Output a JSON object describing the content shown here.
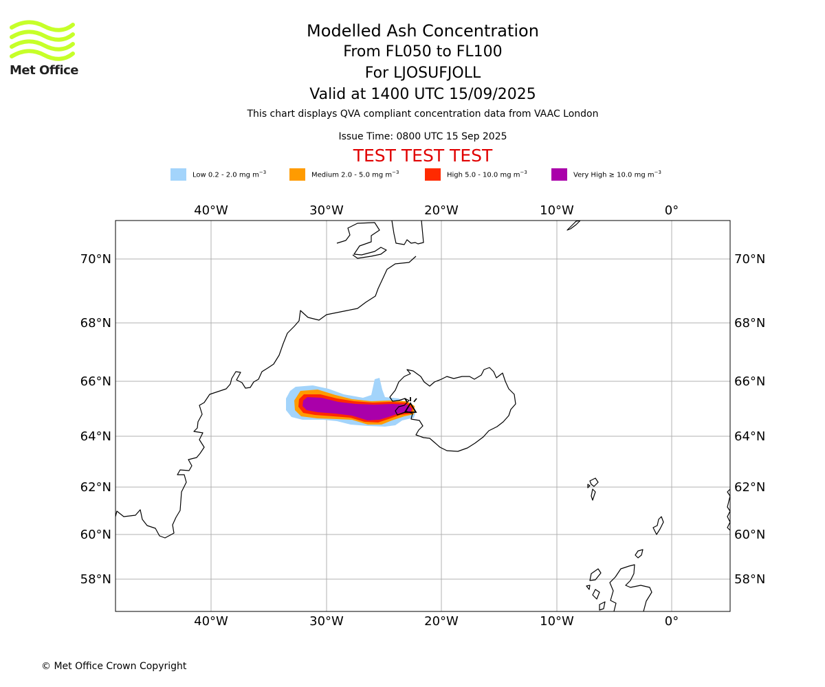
{
  "branding": {
    "logo_text": "Met Office",
    "colors": {
      "logo_green": "#c6ff29"
    }
  },
  "header": {
    "title": "Modelled Ash Concentration",
    "flight_levels": "From FL050 to FL100",
    "volcano": "For LJOSUFJOLL",
    "valid_time": "Valid at 1400 UTC 15/09/2025",
    "source_note": "This chart displays QVA compliant concentration data from VAAC London",
    "issue_time": "Issue Time: 0800 UTC 15 Sep 2025",
    "test_banner": "TEST TEST TEST"
  },
  "legend": [
    {
      "prefix": "Low 0.2 - 2.0 mg m",
      "exp": "−3",
      "color": "#a3d4fb"
    },
    {
      "prefix": "Medium 2.0 - 5.0 mg m",
      "exp": "−3",
      "color": "#ff9b00"
    },
    {
      "prefix": "High 5.0 - 10.0 mg m",
      "exp": "−3",
      "color": "#ff2a00"
    },
    {
      "prefix": "Very High  ≥  10.0 mg m",
      "exp": "−3",
      "color": "#aa00aa"
    }
  ],
  "map": {
    "projection": "mercator",
    "lon_range": [
      -48.3,
      5.0
    ],
    "lat_range": [
      56.8,
      71.2
    ],
    "lon_ticks": [
      {
        "lon": -40,
        "label": "40°W"
      },
      {
        "lon": -30,
        "label": "30°W"
      },
      {
        "lon": -20,
        "label": "20°W"
      },
      {
        "lon": -10,
        "label": "10°W"
      },
      {
        "lon": 0,
        "label": "0°"
      }
    ],
    "lat_ticks": [
      {
        "lat": 70,
        "label": "70°N"
      },
      {
        "lat": 68,
        "label": "68°N"
      },
      {
        "lat": 66,
        "label": "66°N"
      },
      {
        "lat": 64,
        "label": "64°N"
      },
      {
        "lat": 62,
        "label": "62°N"
      },
      {
        "lat": 60,
        "label": "60°N"
      },
      {
        "lat": 58,
        "label": "58°N"
      }
    ],
    "volcano_location": {
      "lon": -22.3,
      "lat": 64.9
    }
  },
  "footer": {
    "copyright": "© Met Office Crown Copyright"
  }
}
